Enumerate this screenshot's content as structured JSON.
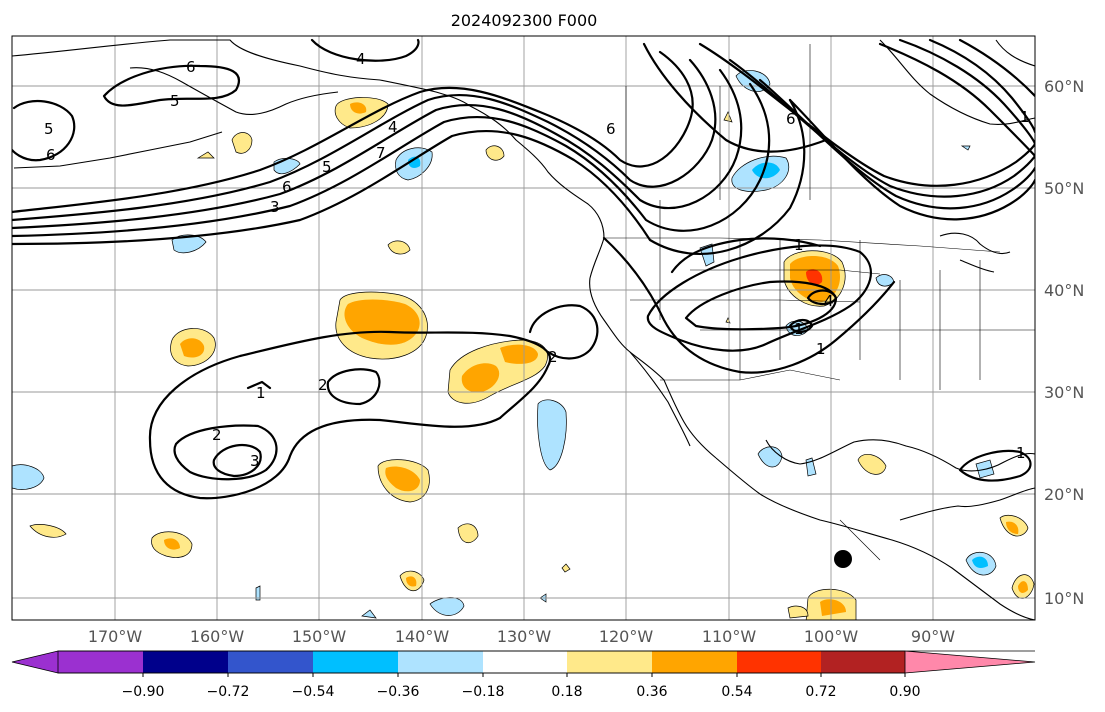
{
  "title": "2024092300 F000",
  "map": {
    "lat_labels": [
      "60°N",
      "50°N",
      "40°N",
      "30°N",
      "20°N",
      "10°N"
    ],
    "lon_labels": [
      "170°W",
      "160°W",
      "150°W",
      "140°W",
      "130°W",
      "120°W",
      "110°W",
      "100°W",
      "90°W"
    ],
    "contour_labels": {
      "c_n_6a": "6",
      "c_n_5a": "5",
      "c_n_4": "4",
      "c_w_5": "5",
      "c_w_6": "6",
      "c_t_6": "6",
      "c_t_5": "5",
      "c_t_4": "4",
      "c_t_3": "3",
      "c_t_7": "7",
      "c_r_6": "6",
      "c_r_6b": "6",
      "c_ne_1": "1",
      "c_s_1": "1",
      "c_s_2a": "2",
      "c_s_2b": "2",
      "c_s_2c": "2",
      "c_s_3": "3",
      "c_us_1a": "1",
      "c_us_4": "4",
      "c_us_1b": "1",
      "c_us_1c": "1",
      "c_gm_1": "1"
    },
    "marker": "storm-center-dot"
  },
  "colorbar": {
    "colors": [
      "#9b30d0",
      "#00008b",
      "#3355cc",
      "#00bfff",
      "#aee3ff",
      "#ffffff",
      "#ffe98a",
      "#ffa500",
      "#ff3300",
      "#b22222",
      "#ff88aa"
    ],
    "tick_labels": [
      "−0.90",
      "−0.72",
      "−0.54",
      "−0.36",
      "−0.18",
      "0.18",
      "0.36",
      "0.54",
      "0.72",
      "0.90"
    ]
  },
  "fills": {
    "light_yellow": "#ffe98a",
    "orange": "#ffa500",
    "red_orange": "#ff3300",
    "light_blue": "#aee3ff",
    "deep_sky_blue": "#00bfff"
  }
}
